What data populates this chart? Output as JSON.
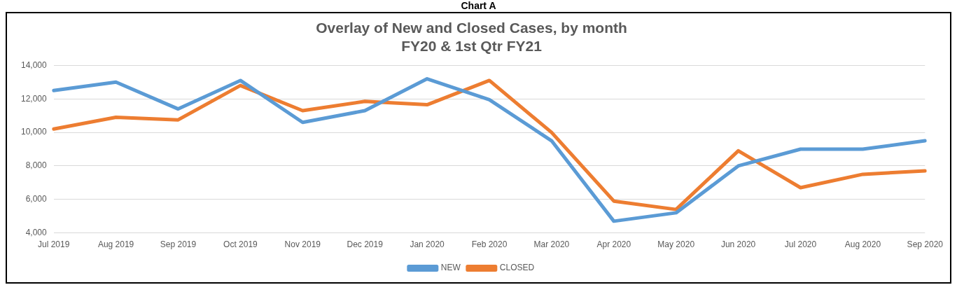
{
  "chart_data": {
    "type": "line",
    "title": "Overlay of New and Closed Cases, by month",
    "subtitle": "FY20 & 1st Qtr FY21",
    "annotations": [
      "Chart A"
    ],
    "categories": [
      "Jul 2019",
      "Aug 2019",
      "Sep 2019",
      "Oct 2019",
      "Nov 2019",
      "Dec 2019",
      "Jan 2020",
      "Feb 2020",
      "Mar 2020",
      "Apr 2020",
      "May 2020",
      "Jun 2020",
      "Jul 2020",
      "Aug 2020",
      "Sep 2020"
    ],
    "series": [
      {
        "name": "NEW",
        "color": "#5b9bd5",
        "values": [
          12500,
          13000,
          11400,
          13100,
          10600,
          11300,
          13200,
          11950,
          9500,
          4700,
          5200,
          8000,
          9000,
          9000,
          9500
        ]
      },
      {
        "name": "CLOSED",
        "color": "#ed7d31",
        "values": [
          10200,
          10900,
          10750,
          12800,
          11300,
          11850,
          11650,
          13100,
          10000,
          5900,
          5400,
          8900,
          6700,
          7500,
          7700
        ]
      }
    ],
    "ylim": [
      4000,
      14000
    ],
    "yticks": [
      {
        "value": 4000,
        "label": "4,000"
      },
      {
        "value": 6000,
        "label": "6,000"
      },
      {
        "value": 8000,
        "label": "8,000"
      },
      {
        "value": 10000,
        "label": "10,000"
      },
      {
        "value": 12000,
        "label": "12,000"
      },
      {
        "value": 14000,
        "label": "14,000"
      }
    ],
    "grid": "y",
    "legend": "bottom",
    "marker": "none",
    "line_style": "solid"
  }
}
